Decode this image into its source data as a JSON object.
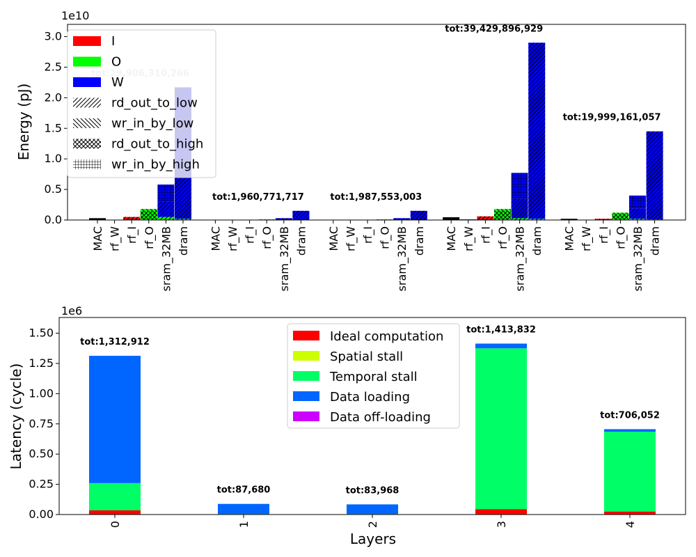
{
  "chart_data": [
    {
      "type": "bar",
      "stacked": true,
      "ylabel": "Energy (pJ)",
      "scale_label": "1e10",
      "ylim": [
        0,
        3.2
      ],
      "yticks": [
        "0.0",
        "0.5",
        "1.0",
        "1.5",
        "2.0",
        "2.5",
        "3.0"
      ],
      "memory_levels": [
        "MAC",
        "rf_W",
        "rf_I",
        "rf_O",
        "sram_32MB",
        "dram"
      ],
      "series": [
        {
          "name": "I",
          "color": "#ff0000"
        },
        {
          "name": "O",
          "color": "#00ff00"
        },
        {
          "name": "W",
          "color": "#0000ff"
        }
      ],
      "patterns": [
        {
          "name": "rd_out_to_low",
          "id": "hatch-fwd"
        },
        {
          "name": "wr_in_by_low",
          "id": "hatch-back"
        },
        {
          "name": "rd_out_to_high",
          "id": "hatch-cross"
        },
        {
          "name": "wr_in_by_high",
          "id": "hatch-grid"
        }
      ],
      "groups": [
        {
          "layer": "0",
          "total_label": "tot:29,906,310,266",
          "bars": [
            {
              "level": "MAC",
              "segments": [
                {
                  "color": "#000000",
                  "pattern": "none",
                  "value": 0.03
                }
              ]
            },
            {
              "level": "rf_W",
              "segments": [
                {
                  "color": "#0000ff",
                  "pattern": "none",
                  "value": 0.005
                }
              ]
            },
            {
              "level": "rf_I",
              "segments": [
                {
                  "color": "#ff0000",
                  "pattern": "hatch-fwd",
                  "value": 0.05
                }
              ]
            },
            {
              "level": "rf_O",
              "segments": [
                {
                  "color": "#00ff00",
                  "pattern": "hatch-cross",
                  "value": 0.15
                },
                {
                  "color": "#00ff00",
                  "pattern": "hatch-back",
                  "value": 0.03
                }
              ]
            },
            {
              "level": "sram_32MB",
              "segments": [
                {
                  "color": "#00ff00",
                  "pattern": "hatch-fwd",
                  "value": 0.05
                },
                {
                  "color": "#0000ff",
                  "pattern": "hatch-fwd",
                  "value": 0.25
                },
                {
                  "color": "#0000ff",
                  "pattern": "hatch-grid",
                  "value": 0.28
                }
              ]
            },
            {
              "level": "dram",
              "segments": [
                {
                  "color": "#00ff00",
                  "pattern": "hatch-fwd",
                  "value": 0.02
                },
                {
                  "color": "#0000ff",
                  "pattern": "hatch-fwd",
                  "value": 2.15
                }
              ]
            }
          ]
        },
        {
          "layer": "1",
          "total_label": "tot:1,960,771,717",
          "bars": [
            {
              "level": "MAC",
              "segments": [
                {
                  "color": "#000000",
                  "pattern": "none",
                  "value": 0.003
                }
              ]
            },
            {
              "level": "rf_W",
              "segments": [
                {
                  "color": "#0000ff",
                  "pattern": "none",
                  "value": 0.002
                }
              ]
            },
            {
              "level": "rf_I",
              "segments": [
                {
                  "color": "#ff0000",
                  "pattern": "hatch-fwd",
                  "value": 0.004
                }
              ]
            },
            {
              "level": "rf_O",
              "segments": [
                {
                  "color": "#00ff00",
                  "pattern": "hatch-cross",
                  "value": 0.01
                }
              ]
            },
            {
              "level": "sram_32MB",
              "segments": [
                {
                  "color": "#0000ff",
                  "pattern": "hatch-fwd",
                  "value": 0.03
                }
              ]
            },
            {
              "level": "dram",
              "segments": [
                {
                  "color": "#0000ff",
                  "pattern": "hatch-fwd",
                  "value": 0.15
                }
              ]
            }
          ]
        },
        {
          "layer": "2",
          "total_label": "tot:1,987,553,003",
          "bars": [
            {
              "level": "MAC",
              "segments": [
                {
                  "color": "#000000",
                  "pattern": "none",
                  "value": 0.003
                }
              ]
            },
            {
              "level": "rf_W",
              "segments": [
                {
                  "color": "#0000ff",
                  "pattern": "none",
                  "value": 0.002
                }
              ]
            },
            {
              "level": "rf_I",
              "segments": [
                {
                  "color": "#ff0000",
                  "pattern": "hatch-fwd",
                  "value": 0.004
                }
              ]
            },
            {
              "level": "rf_O",
              "segments": [
                {
                  "color": "#00ff00",
                  "pattern": "hatch-cross",
                  "value": 0.01
                }
              ]
            },
            {
              "level": "sram_32MB",
              "segments": [
                {
                  "color": "#0000ff",
                  "pattern": "hatch-fwd",
                  "value": 0.03
                }
              ]
            },
            {
              "level": "dram",
              "segments": [
                {
                  "color": "#0000ff",
                  "pattern": "hatch-fwd",
                  "value": 0.15
                }
              ]
            }
          ]
        },
        {
          "layer": "3",
          "total_label": "tot:39,429,896,929",
          "bars": [
            {
              "level": "MAC",
              "segments": [
                {
                  "color": "#000000",
                  "pattern": "none",
                  "value": 0.045
                }
              ]
            },
            {
              "level": "rf_W",
              "segments": [
                {
                  "color": "#0000ff",
                  "pattern": "none",
                  "value": 0.01
                }
              ]
            },
            {
              "level": "rf_I",
              "segments": [
                {
                  "color": "#ff0000",
                  "pattern": "hatch-fwd",
                  "value": 0.06
                }
              ]
            },
            {
              "level": "rf_O",
              "segments": [
                {
                  "color": "#00ff00",
                  "pattern": "hatch-cross",
                  "value": 0.15
                },
                {
                  "color": "#00ff00",
                  "pattern": "hatch-back",
                  "value": 0.03
                }
              ]
            },
            {
              "level": "sram_32MB",
              "segments": [
                {
                  "color": "#00ff00",
                  "pattern": "hatch-fwd",
                  "value": 0.03
                },
                {
                  "color": "#0000ff",
                  "pattern": "hatch-fwd",
                  "value": 0.32
                },
                {
                  "color": "#0000ff",
                  "pattern": "hatch-grid",
                  "value": 0.42
                }
              ]
            },
            {
              "level": "dram",
              "segments": [
                {
                  "color": "#00ff00",
                  "pattern": "hatch-fwd",
                  "value": 0.02
                },
                {
                  "color": "#0000ff",
                  "pattern": "hatch-fwd",
                  "value": 2.88
                }
              ]
            }
          ]
        },
        {
          "layer": "4",
          "total_label": "tot:19,999,161,057",
          "bars": [
            {
              "level": "MAC",
              "segments": [
                {
                  "color": "#000000",
                  "pattern": "none",
                  "value": 0.02
                }
              ]
            },
            {
              "level": "rf_W",
              "segments": [
                {
                  "color": "#0000ff",
                  "pattern": "none",
                  "value": 0.005
                }
              ]
            },
            {
              "level": "rf_I",
              "segments": [
                {
                  "color": "#ff0000",
                  "pattern": "hatch-fwd",
                  "value": 0.02
                }
              ]
            },
            {
              "level": "rf_O",
              "segments": [
                {
                  "color": "#00ff00",
                  "pattern": "hatch-cross",
                  "value": 0.1
                },
                {
                  "color": "#00ff00",
                  "pattern": "hatch-back",
                  "value": 0.02
                }
              ]
            },
            {
              "level": "sram_32MB",
              "segments": [
                {
                  "color": "#00ff00",
                  "pattern": "hatch-fwd",
                  "value": 0.02
                },
                {
                  "color": "#0000ff",
                  "pattern": "hatch-fwd",
                  "value": 0.17
                },
                {
                  "color": "#0000ff",
                  "pattern": "hatch-grid",
                  "value": 0.21
                }
              ]
            },
            {
              "level": "dram",
              "segments": [
                {
                  "color": "#00ff00",
                  "pattern": "hatch-fwd",
                  "value": 0.01
                },
                {
                  "color": "#0000ff",
                  "pattern": "hatch-fwd",
                  "value": 1.44
                }
              ]
            }
          ]
        }
      ],
      "legend": "top-left"
    },
    {
      "type": "bar",
      "stacked": true,
      "xlabel": "Layers",
      "ylabel": "Latency (cycle)",
      "scale_label": "1e6",
      "ylim": [
        0,
        1.63
      ],
      "yticks": [
        "0.00",
        "0.25",
        "0.50",
        "0.75",
        "1.00",
        "1.25",
        "1.50"
      ],
      "categories": [
        "0",
        "1",
        "2",
        "3",
        "4"
      ],
      "series": [
        {
          "name": "Ideal computation",
          "color": "#ff0000",
          "values": [
            0.035,
            0.0,
            0.0,
            0.045,
            0.025
          ]
        },
        {
          "name": "Spatial stall",
          "color": "#ccff00",
          "values": [
            0.0,
            0.0,
            0.0,
            0.0,
            0.0
          ]
        },
        {
          "name": "Temporal stall",
          "color": "#00ff66",
          "values": [
            0.225,
            0.004,
            0.004,
            1.33,
            0.66
          ]
        },
        {
          "name": "Data loading",
          "color": "#0066ff",
          "values": [
            1.053,
            0.084,
            0.08,
            0.039,
            0.021
          ]
        },
        {
          "name": "Data off-loading",
          "color": "#cc00ff",
          "values": [
            0.0,
            0.0,
            0.0,
            0.0,
            0.0
          ]
        }
      ],
      "total_labels": [
        "tot:1,312,912",
        "tot:87,680",
        "tot:83,968",
        "tot:1,413,832",
        "tot:706,052"
      ],
      "legend": "top-center"
    }
  ]
}
